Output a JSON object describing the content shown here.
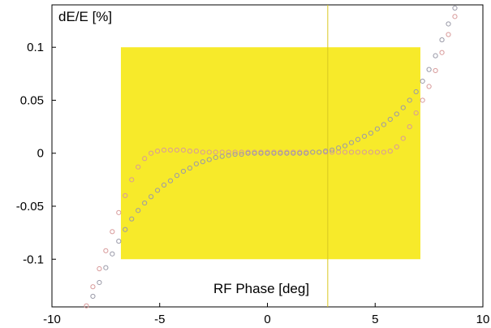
{
  "chart_data": {
    "type": "scatter",
    "title": "",
    "xlabel": "RF Phase [deg]",
    "ylabel": "dE/E [%]",
    "xlim": [
      -10,
      10
    ],
    "ylim": [
      -0.145,
      0.14
    ],
    "x_ticks": [
      "-10",
      "-5",
      "0",
      "5",
      "10"
    ],
    "y_ticks": [
      "0.1",
      "0.05",
      "0",
      "-0.05",
      "-0.1"
    ],
    "grid": false,
    "legend": "none",
    "highlight_band": {
      "x_range": [
        -6.8,
        7.1
      ],
      "y_range": [
        -0.1,
        0.1
      ],
      "color": "#f7ea2a"
    },
    "series": [
      {
        "color": "#d89a9a",
        "x": [
          -8.4,
          -8.1,
          -7.8,
          -7.5,
          -7.2,
          -6.9,
          -6.6,
          -6.3,
          -6.0,
          -5.7,
          -5.4,
          -5.1,
          -4.8,
          -4.5,
          -4.2,
          -3.9,
          -3.6,
          -3.3,
          -3.0,
          -2.7,
          -2.4,
          -2.1,
          -1.8,
          -1.5,
          -1.2,
          -0.9,
          -0.6,
          -0.3,
          0.0,
          0.3,
          0.6,
          0.9,
          1.2,
          1.5,
          1.8,
          2.1,
          2.4,
          2.7,
          3.0,
          3.3,
          3.6,
          3.9,
          4.2,
          4.5,
          4.8,
          5.1,
          5.4,
          5.7,
          6.0,
          6.3,
          6.6,
          6.9,
          7.2,
          7.5,
          7.8,
          8.1,
          8.4,
          8.7
        ],
        "y": [
          -0.144,
          -0.126,
          -0.109,
          -0.092,
          -0.074,
          -0.056,
          -0.04,
          -0.025,
          -0.013,
          -0.005,
          0.0,
          0.002,
          0.003,
          0.003,
          0.003,
          0.003,
          0.002,
          0.002,
          0.001,
          0.001,
          0.001,
          0.001,
          0.001,
          0.001,
          0.001,
          0.001,
          0.001,
          0.001,
          0.001,
          0.001,
          0.001,
          0.001,
          0.001,
          0.001,
          0.001,
          0.001,
          0.001,
          0.001,
          0.001,
          0.001,
          0.001,
          0.001,
          0.001,
          0.001,
          0.001,
          0.001,
          0.001,
          0.002,
          0.006,
          0.014,
          0.025,
          0.038,
          0.05,
          0.063,
          0.078,
          0.095,
          0.112,
          0.129
        ]
      },
      {
        "color": "#9a9aa8",
        "x": [
          -8.1,
          -7.8,
          -7.5,
          -7.2,
          -6.9,
          -6.6,
          -6.3,
          -6.0,
          -5.7,
          -5.4,
          -5.1,
          -4.8,
          -4.5,
          -4.2,
          -3.9,
          -3.6,
          -3.3,
          -3.0,
          -2.7,
          -2.4,
          -2.1,
          -1.8,
          -1.5,
          -1.2,
          -0.9,
          -0.6,
          -0.3,
          0.0,
          0.3,
          0.6,
          0.9,
          1.2,
          1.5,
          1.8,
          2.1,
          2.4,
          2.7,
          3.0,
          3.3,
          3.6,
          3.9,
          4.2,
          4.5,
          4.8,
          5.1,
          5.4,
          5.7,
          6.0,
          6.3,
          6.6,
          6.9,
          7.2,
          7.5,
          7.8,
          8.1,
          8.4,
          8.7
        ],
        "y": [
          -0.135,
          -0.122,
          -0.108,
          -0.095,
          -0.083,
          -0.072,
          -0.062,
          -0.054,
          -0.047,
          -0.041,
          -0.035,
          -0.03,
          -0.026,
          -0.021,
          -0.017,
          -0.014,
          -0.01,
          -0.008,
          -0.006,
          -0.004,
          -0.003,
          -0.002,
          -0.001,
          -0.001,
          0.0,
          0.0,
          0.0,
          0.0,
          0.0,
          0.0,
          0.0,
          0.0,
          0.0,
          0.0,
          0.001,
          0.001,
          0.002,
          0.003,
          0.005,
          0.007,
          0.01,
          0.013,
          0.016,
          0.019,
          0.023,
          0.027,
          0.032,
          0.037,
          0.043,
          0.05,
          0.058,
          0.068,
          0.079,
          0.092,
          0.107,
          0.122,
          0.137
        ]
      }
    ]
  }
}
